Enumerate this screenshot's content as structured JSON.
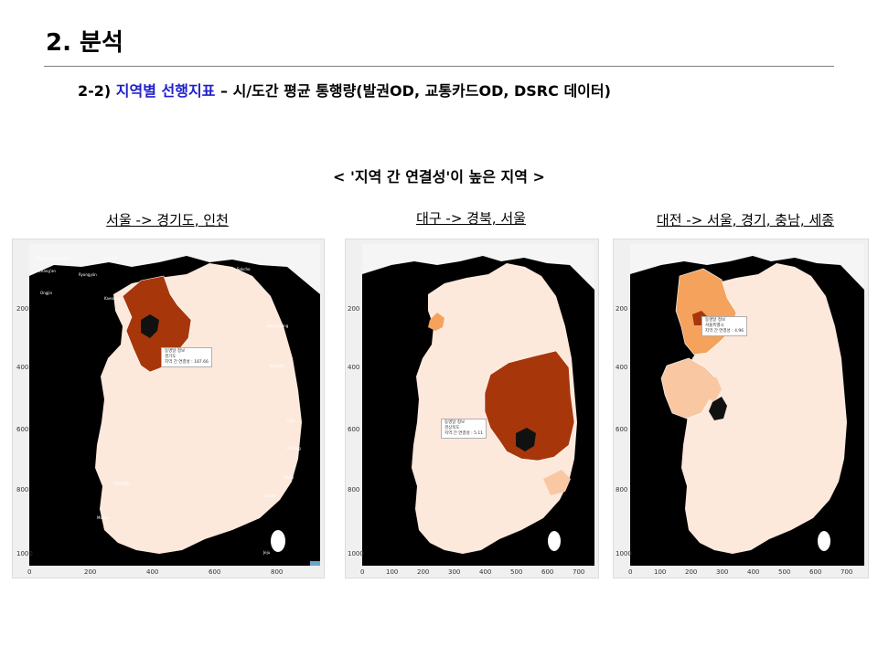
{
  "title": "2. 분석",
  "subtitle": {
    "prefix": "2-2) ",
    "highlight": "지역별 선행지표",
    "rest": " – 시/도간 평균 통행량(발권OD, 교통카드OD, DSRC 데이터)"
  },
  "section_heading": "< '지역 간 연결성'이 높은 지역 >",
  "colors": {
    "accent_blue": "#1f1fcc",
    "sea": "#000000",
    "base_land": "#fde9dc",
    "high": "#a7370b",
    "mid": "#f5a25c",
    "low": "#f9c8a3"
  },
  "panels": [
    {
      "caption": "서울 -> 경기도, 인천",
      "x_ticks": [
        "0",
        "200",
        "400",
        "600",
        "800"
      ],
      "y_ticks": [
        "200",
        "400",
        "600",
        "800",
        "1000"
      ],
      "tooltip": {
        "left": "동명달 정보",
        "name": "경기도",
        "value": "지역 간 연결성 : 187.66"
      }
    },
    {
      "caption": "대구 -> 경북, 서울",
      "x_ticks": [
        "0",
        "100",
        "200",
        "300",
        "400",
        "500",
        "600",
        "700"
      ],
      "y_ticks": [
        "200",
        "400",
        "600",
        "800",
        "1000"
      ],
      "tooltip": {
        "left": "동명달 정보",
        "name": "경상북도",
        "value": "지역 간 연결성 : 5.11"
      }
    },
    {
      "caption": "대전 -> 서울, 경기, 충남, 세종",
      "x_ticks": [
        "0",
        "100",
        "200",
        "300",
        "400",
        "500",
        "600",
        "700"
      ],
      "y_ticks": [
        "200",
        "400",
        "600",
        "800",
        "1000"
      ],
      "tooltip": {
        "left": "동명달 정보",
        "name": "서울특별시",
        "value": "지역 간 연결성 : 4.96"
      }
    }
  ],
  "map_labels": [
    "Chanryŏngjang-up",
    "Sinmak",
    "Chang'an",
    "Ongjin",
    "Ryongyŏn",
    "Kaesong",
    "Sokcho",
    "Gangneung",
    "Taebaek",
    "Uljin",
    "Pohang",
    "Ulsan",
    "Busan",
    "Gwangju",
    "Mokpo",
    "Jeju"
  ]
}
